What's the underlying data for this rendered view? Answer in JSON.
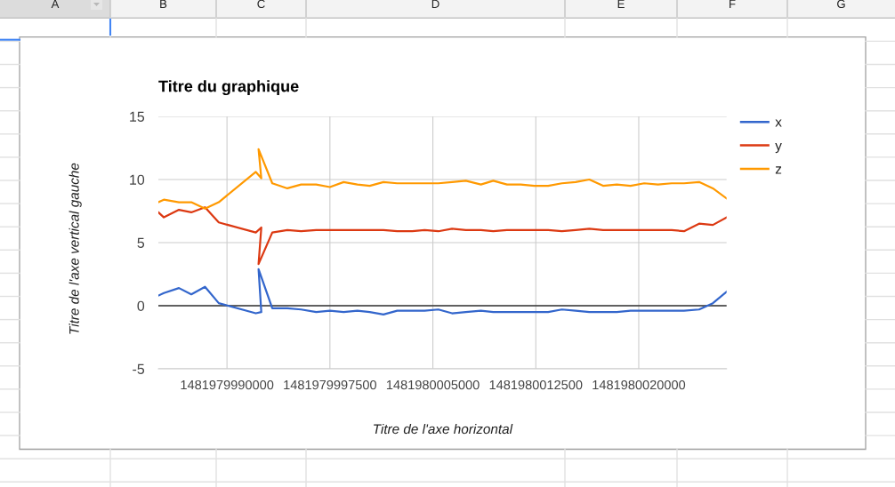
{
  "chart_data": {
    "type": "line",
    "title": "Titre du graphique",
    "xlabel": "Titre de l'axe horizontal",
    "ylabel": "Titre de l'axe vertical gauche",
    "annotations": [
      "A",
      "B",
      "C",
      "D",
      "E",
      "F",
      "G"
    ],
    "x": [
      1481979985000,
      1481979985400,
      1481979986500,
      1481979987400,
      1481979988400,
      1481979989400,
      1481979992100,
      1481979992500,
      1481979992300,
      1481979993300,
      1481979994400,
      1481979995400,
      1481979996500,
      1481979997500,
      1481979998500,
      1481979999500,
      1481980000400,
      1481980001400,
      1481980002400,
      1481980003500,
      1481980004400,
      1481980005400,
      1481980006400,
      1481980007400,
      1481980008500,
      1481980009400,
      1481980010400,
      1481980011400,
      1481980012400,
      1481980013400,
      1481980014400,
      1481980015400,
      1481980016400,
      1481980017400,
      1481980018400,
      1481980019400,
      1481980020400,
      1481980021400,
      1481980022400,
      1481980023300,
      1481980024400,
      1481980025400,
      1481980026400
    ],
    "series": [
      {
        "name": "x",
        "color": "#3366cc",
        "values": [
          0.8,
          1.0,
          1.4,
          0.9,
          1.5,
          0.2,
          -0.6,
          -0.5,
          2.9,
          -0.2,
          -0.2,
          -0.3,
          -0.5,
          -0.4,
          -0.5,
          -0.4,
          -0.5,
          -0.7,
          -0.4,
          -0.4,
          -0.4,
          -0.3,
          -0.6,
          -0.5,
          -0.4,
          -0.5,
          -0.5,
          -0.5,
          -0.5,
          -0.5,
          -0.3,
          -0.4,
          -0.5,
          -0.5,
          -0.5,
          -0.4,
          -0.4,
          -0.4,
          -0.4,
          -0.4,
          -0.3,
          0.2,
          1.1
        ]
      },
      {
        "name": "y",
        "color": "#dc3912",
        "values": [
          7.4,
          7.0,
          7.6,
          7.4,
          7.8,
          6.6,
          5.8,
          6.2,
          3.3,
          5.8,
          6.0,
          5.9,
          6.0,
          6.0,
          6.0,
          6.0,
          6.0,
          6.0,
          5.9,
          5.9,
          6.0,
          5.9,
          6.1,
          6.0,
          6.0,
          5.9,
          6.0,
          6.0,
          6.0,
          6.0,
          5.9,
          6.0,
          6.1,
          6.0,
          6.0,
          6.0,
          6.0,
          6.0,
          6.0,
          5.9,
          6.5,
          6.4,
          7.0
        ]
      },
      {
        "name": "z",
        "color": "#ff9900",
        "values": [
          8.2,
          8.4,
          8.2,
          8.2,
          7.7,
          8.2,
          10.6,
          10.1,
          12.4,
          9.7,
          9.3,
          9.6,
          9.6,
          9.4,
          9.8,
          9.6,
          9.5,
          9.8,
          9.7,
          9.7,
          9.7,
          9.7,
          9.8,
          9.9,
          9.6,
          9.9,
          9.6,
          9.6,
          9.5,
          9.5,
          9.7,
          9.8,
          10.0,
          9.5,
          9.6,
          9.5,
          9.7,
          9.6,
          9.7,
          9.7,
          9.8,
          9.3,
          8.5
        ]
      }
    ],
    "xlim": [
      1481979985000,
      1481980026400
    ],
    "xticks": [
      1481979990000,
      1481979997500,
      1481980005000,
      1481980012500,
      1481980020000
    ],
    "ylim": [
      -5,
      15
    ],
    "yticks": [
      -5,
      0,
      5,
      10,
      15
    ],
    "ref_lines": [
      {
        "axis": "y",
        "value": 0,
        "color": "#333333"
      }
    ],
    "grid": true,
    "legend": "top right",
    "line_style": "solid"
  }
}
